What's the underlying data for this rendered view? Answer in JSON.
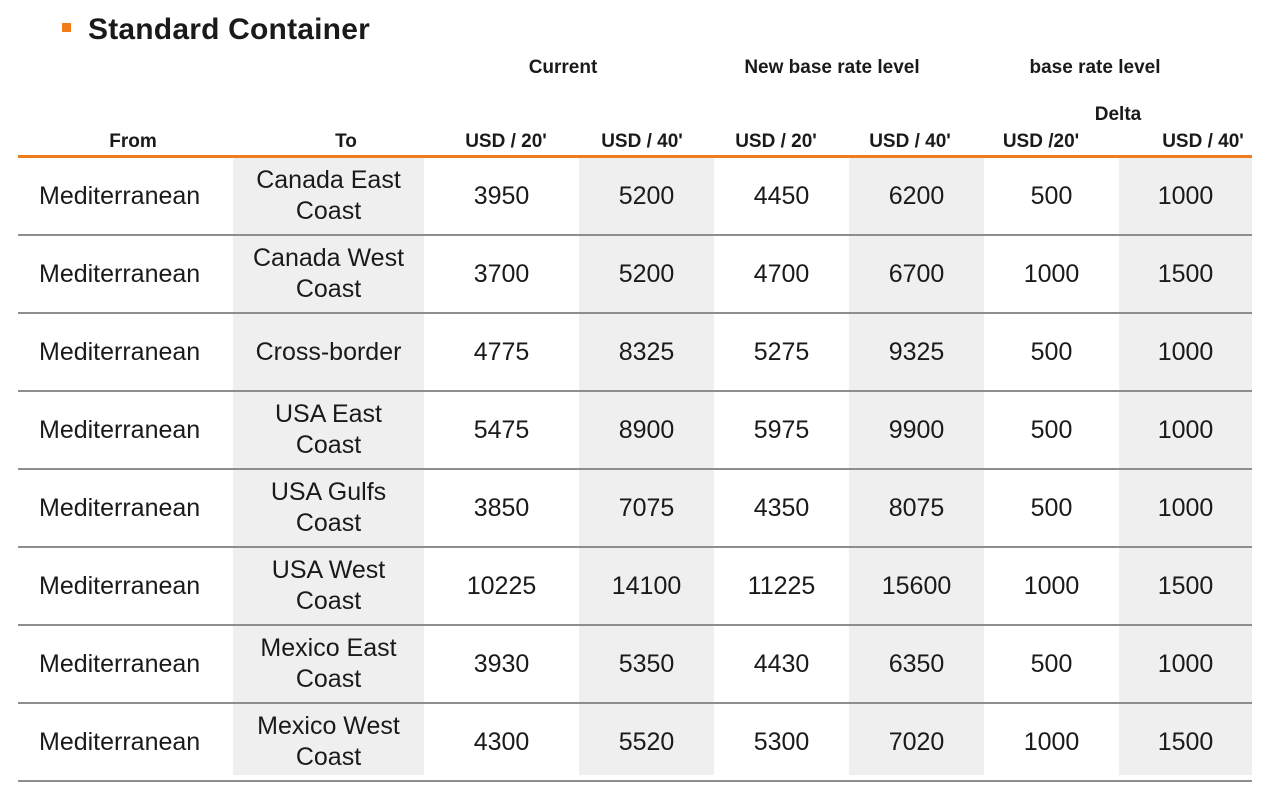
{
  "title": "Standard Container",
  "groups": {
    "current": "Current",
    "new_base": "New base rate level",
    "base": "base rate level",
    "delta": "Delta"
  },
  "columns": {
    "from": "From",
    "to": "To",
    "cur_20": "USD / 20'",
    "cur_40": "USD / 40'",
    "new_20": "USD / 20'",
    "new_40": "USD / 40'",
    "delta_20": "USD /20'",
    "delta_40": "USD / 40'"
  },
  "rows": [
    {
      "from": "Mediterranean",
      "to": "Canada East Coast",
      "cur_20": "3950",
      "cur_40": "5200",
      "new_20": "4450",
      "new_40": "6200",
      "delta_20": "500",
      "delta_40": "1000"
    },
    {
      "from": "Mediterranean",
      "to": "Canada West Coast",
      "cur_20": "3700",
      "cur_40": "5200",
      "new_20": "4700",
      "new_40": "6700",
      "delta_20": "1000",
      "delta_40": "1500"
    },
    {
      "from": "Mediterranean",
      "to": "Cross-border",
      "cur_20": "4775",
      "cur_40": "8325",
      "new_20": "5275",
      "new_40": "9325",
      "delta_20": "500",
      "delta_40": "1000"
    },
    {
      "from": "Mediterranean",
      "to": "USA East Coast",
      "cur_20": "5475",
      "cur_40": "8900",
      "new_20": "5975",
      "new_40": "9900",
      "delta_20": "500",
      "delta_40": "1000"
    },
    {
      "from": "Mediterranean",
      "to": "USA Gulfs Coast",
      "cur_20": "3850",
      "cur_40": "7075",
      "new_20": "4350",
      "new_40": "8075",
      "delta_20": "500",
      "delta_40": "1000"
    },
    {
      "from": "Mediterranean",
      "to": "USA West Coast",
      "cur_20": "10225",
      "cur_40": "14100",
      "new_20": "11225",
      "new_40": "15600",
      "delta_20": "1000",
      "delta_40": "1500"
    },
    {
      "from": "Mediterranean",
      "to": "Mexico East Coast",
      "cur_20": "3930",
      "cur_40": "5350",
      "new_20": "4430",
      "new_40": "6350",
      "delta_20": "500",
      "delta_40": "1000"
    },
    {
      "from": "Mediterranean",
      "to": "Mexico West Coast",
      "cur_20": "4300",
      "cur_40": "5520",
      "new_20": "5300",
      "new_40": "7020",
      "delta_20": "1000",
      "delta_40": "1500"
    }
  ],
  "colors": {
    "accent": "#f07c1c",
    "shade": "#efefef",
    "rule": "#8e8e8e"
  }
}
